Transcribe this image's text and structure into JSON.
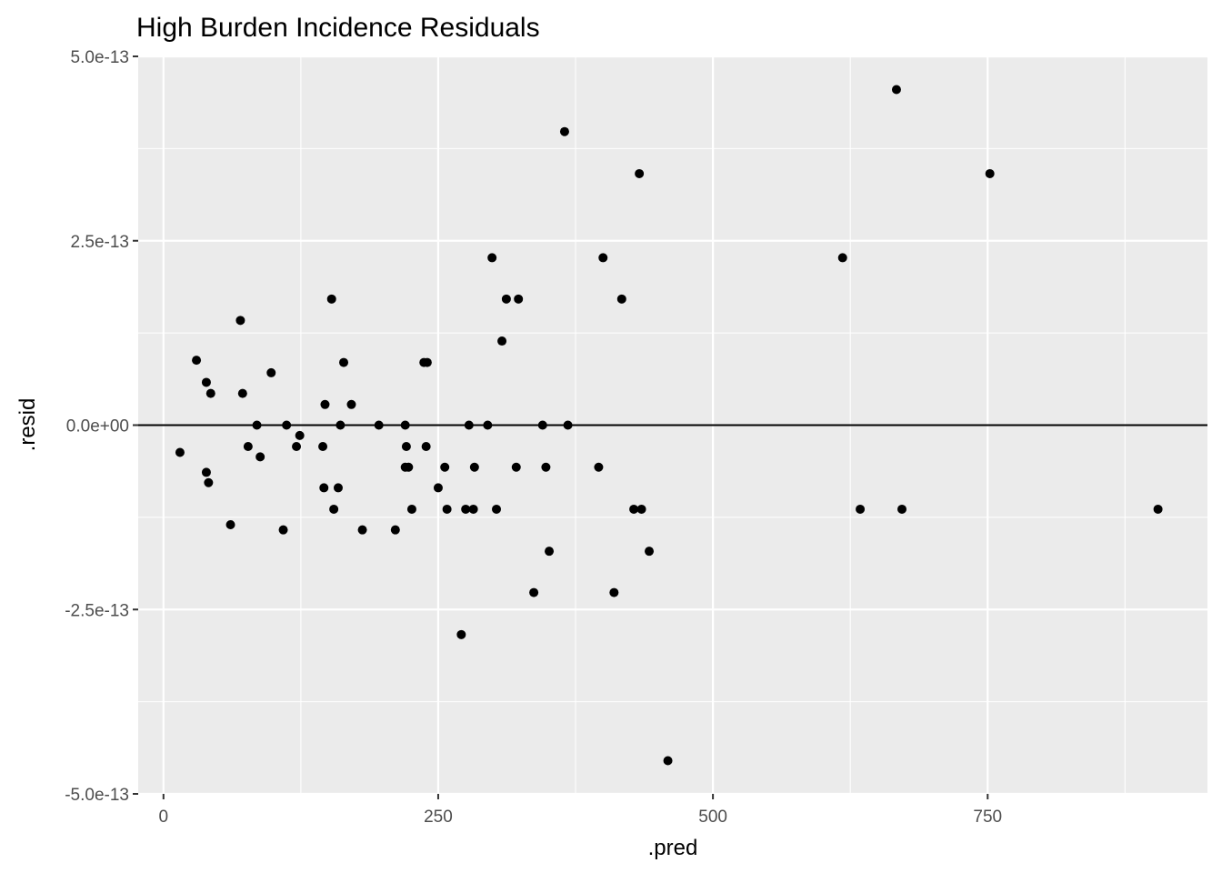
{
  "chart_data": {
    "type": "scatter",
    "title": "High Burden Incidence Residuals",
    "xlabel": ".pred",
    "ylabel": ".resid",
    "xlim": [
      -23,
      950
    ],
    "ylim": [
      -5e-13,
      5e-13
    ],
    "x_ticks": [
      0,
      250,
      500,
      750
    ],
    "x_tick_labels": [
      "0",
      "250",
      "500",
      "750"
    ],
    "y_ticks": [
      -5e-13,
      -2.5e-13,
      0,
      2.5e-13,
      5e-13
    ],
    "y_tick_labels": [
      "-5.0e-13",
      "-2.5e-13",
      "0.0e+00",
      "2.5e-13",
      "5.0e-13"
    ],
    "grid": true,
    "reference_line_y": 0,
    "points": [
      {
        "x": 15,
        "y": -3.7e-14
      },
      {
        "x": 30,
        "y": 8.8e-14
      },
      {
        "x": 39,
        "y": 5.8e-14
      },
      {
        "x": 39,
        "y": -6.4e-14
      },
      {
        "x": 41,
        "y": -7.8e-14
      },
      {
        "x": 43,
        "y": 4.3e-14
      },
      {
        "x": 61,
        "y": -1.35e-13
      },
      {
        "x": 70,
        "y": 1.42e-13
      },
      {
        "x": 72,
        "y": 4.3e-14
      },
      {
        "x": 77,
        "y": -2.9e-14
      },
      {
        "x": 85,
        "y": 0.0
      },
      {
        "x": 88,
        "y": -4.3e-14
      },
      {
        "x": 98,
        "y": 7.1e-14
      },
      {
        "x": 109,
        "y": -1.42e-13
      },
      {
        "x": 112,
        "y": 0.0
      },
      {
        "x": 121,
        "y": -2.9e-14
      },
      {
        "x": 124,
        "y": -1.4e-14
      },
      {
        "x": 145,
        "y": -2.9e-14
      },
      {
        "x": 146,
        "y": -8.5e-14
      },
      {
        "x": 147,
        "y": 2.8e-14
      },
      {
        "x": 153,
        "y": 1.71e-13
      },
      {
        "x": 155,
        "y": -1.14e-13
      },
      {
        "x": 159,
        "y": -8.5e-14
      },
      {
        "x": 161,
        "y": 0.0
      },
      {
        "x": 164,
        "y": 8.5e-14
      },
      {
        "x": 171,
        "y": 2.8e-14
      },
      {
        "x": 181,
        "y": -1.42e-13
      },
      {
        "x": 196,
        "y": 0.0
      },
      {
        "x": 211,
        "y": -1.42e-13
      },
      {
        "x": 220,
        "y": 0.0
      },
      {
        "x": 220,
        "y": -5.7e-14
      },
      {
        "x": 221,
        "y": -2.9e-14
      },
      {
        "x": 223,
        "y": -5.7e-14
      },
      {
        "x": 226,
        "y": -1.14e-13
      },
      {
        "x": 237,
        "y": 8.5e-14
      },
      {
        "x": 239,
        "y": -2.9e-14
      },
      {
        "x": 240,
        "y": 8.5e-14
      },
      {
        "x": 250,
        "y": -8.5e-14
      },
      {
        "x": 256,
        "y": -5.7e-14
      },
      {
        "x": 258,
        "y": -1.14e-13
      },
      {
        "x": 271,
        "y": -2.84e-13
      },
      {
        "x": 275,
        "y": -1.14e-13
      },
      {
        "x": 278,
        "y": 0.0
      },
      {
        "x": 282,
        "y": -1.14e-13
      },
      {
        "x": 283,
        "y": -5.7e-14
      },
      {
        "x": 295,
        "y": 0.0
      },
      {
        "x": 299,
        "y": 2.27e-13
      },
      {
        "x": 303,
        "y": -1.14e-13
      },
      {
        "x": 308,
        "y": 1.14e-13
      },
      {
        "x": 312,
        "y": 1.71e-13
      },
      {
        "x": 321,
        "y": -5.7e-14
      },
      {
        "x": 323,
        "y": 1.71e-13
      },
      {
        "x": 337,
        "y": -2.27e-13
      },
      {
        "x": 345,
        "y": 0.0
      },
      {
        "x": 348,
        "y": -5.7e-14
      },
      {
        "x": 351,
        "y": -1.71e-13
      },
      {
        "x": 365,
        "y": 3.98e-13
      },
      {
        "x": 368,
        "y": 0.0
      },
      {
        "x": 396,
        "y": -5.7e-14
      },
      {
        "x": 400,
        "y": 2.27e-13
      },
      {
        "x": 410,
        "y": -2.27e-13
      },
      {
        "x": 417,
        "y": 1.71e-13
      },
      {
        "x": 428,
        "y": -1.14e-13
      },
      {
        "x": 433,
        "y": 3.41e-13
      },
      {
        "x": 435,
        "y": -1.14e-13
      },
      {
        "x": 442,
        "y": -1.71e-13
      },
      {
        "x": 459,
        "y": -4.55e-13
      },
      {
        "x": 618,
        "y": 2.27e-13
      },
      {
        "x": 634,
        "y": -1.14e-13
      },
      {
        "x": 667,
        "y": 4.55e-13
      },
      {
        "x": 672,
        "y": -1.14e-13
      },
      {
        "x": 752,
        "y": 3.41e-13
      },
      {
        "x": 905,
        "y": -1.14e-13
      }
    ]
  }
}
